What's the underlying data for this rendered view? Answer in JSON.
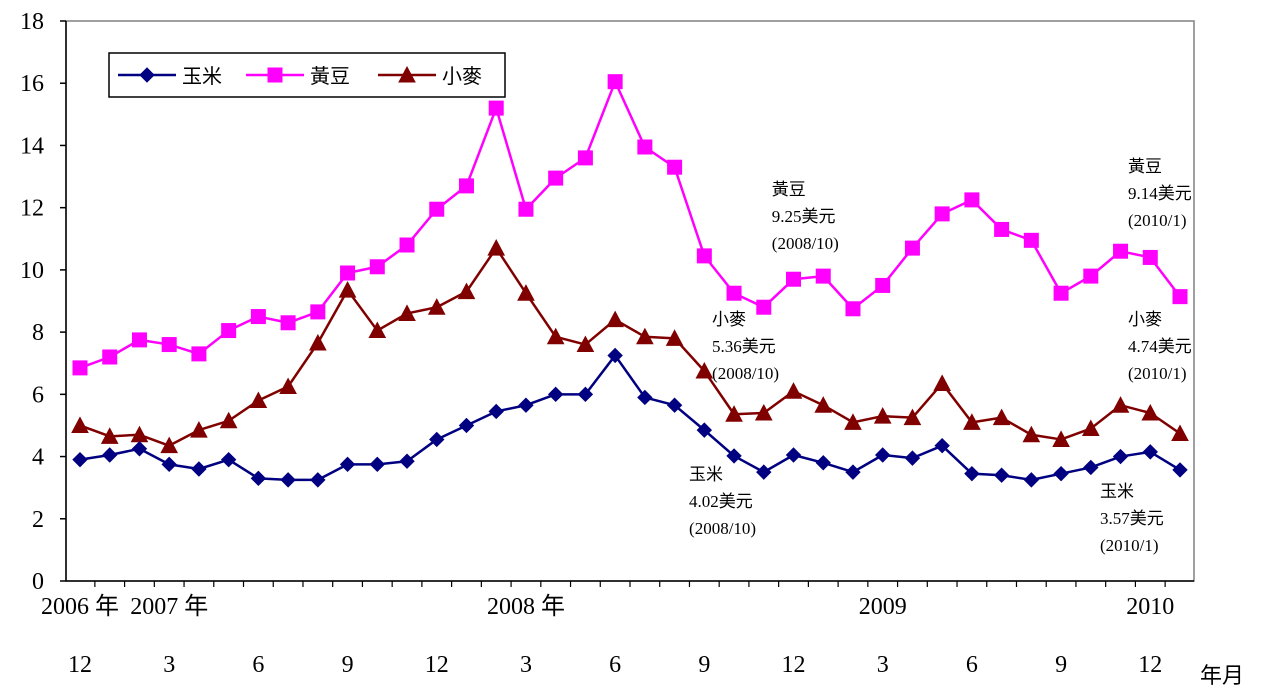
{
  "chart_data": {
    "type": "line",
    "unit_label": "年月",
    "ylim": [
      0,
      18
    ],
    "yticks": [
      0,
      2,
      4,
      6,
      8,
      10,
      12,
      14,
      16,
      18
    ],
    "x": [
      "2006/12",
      "2007/1",
      "2007/2",
      "2007/3",
      "2007/4",
      "2007/5",
      "2007/6",
      "2007/7",
      "2007/8",
      "2007/9",
      "2007/10",
      "2007/11",
      "2007/12",
      "2008/1",
      "2008/2",
      "2008/3",
      "2008/4",
      "2008/5",
      "2008/6",
      "2008/7",
      "2008/8",
      "2008/9",
      "2008/10",
      "2008/11",
      "2008/12",
      "2009/1",
      "2009/2",
      "2009/3",
      "2009/4",
      "2009/5",
      "2009/6",
      "2009/7",
      "2009/8",
      "2009/9",
      "2009/10",
      "2009/11",
      "2009/12",
      "2010/1"
    ],
    "x_tick_labels": [
      {
        "i": 0,
        "month": "12",
        "year": "2006 年"
      },
      {
        "i": 3,
        "month": "3",
        "year": "2007 年"
      },
      {
        "i": 6,
        "month": "6",
        "year": ""
      },
      {
        "i": 9,
        "month": "9",
        "year": ""
      },
      {
        "i": 12,
        "month": "12",
        "year": ""
      },
      {
        "i": 15,
        "month": "3",
        "year": "2008 年"
      },
      {
        "i": 18,
        "month": "6",
        "year": ""
      },
      {
        "i": 21,
        "month": "9",
        "year": ""
      },
      {
        "i": 24,
        "month": "12",
        "year": ""
      },
      {
        "i": 27,
        "month": "3",
        "year": "2009"
      },
      {
        "i": 30,
        "month": "6",
        "year": ""
      },
      {
        "i": 33,
        "month": "9",
        "year": ""
      },
      {
        "i": 36,
        "month": "12",
        "year": "2010"
      }
    ],
    "grid": false,
    "legend": "top-left",
    "series": [
      {
        "name": "玉米",
        "color": "#000080",
        "marker": "diamond",
        "values": [
          3.9,
          4.05,
          4.25,
          3.75,
          3.6,
          3.9,
          3.3,
          3.25,
          3.25,
          3.75,
          3.75,
          3.85,
          4.55,
          5.0,
          5.45,
          5.65,
          6.0,
          6.0,
          7.25,
          5.9,
          5.65,
          4.85,
          4.02,
          3.5,
          4.05,
          3.8,
          3.5,
          4.05,
          3.95,
          4.35,
          3.45,
          3.4,
          3.25,
          3.45,
          3.65,
          4.0,
          4.15,
          3.57
        ]
      },
      {
        "name": "黃豆",
        "color": "#ff00ff",
        "marker": "square",
        "values": [
          6.85,
          7.2,
          7.75,
          7.6,
          7.3,
          8.05,
          8.5,
          8.3,
          8.65,
          9.9,
          10.1,
          10.8,
          11.95,
          12.7,
          15.2,
          11.95,
          12.95,
          13.6,
          16.05,
          13.95,
          13.3,
          10.45,
          9.25,
          8.8,
          9.7,
          9.8,
          8.75,
          9.5,
          10.7,
          11.8,
          12.25,
          11.3,
          10.95,
          9.25,
          9.8,
          10.6,
          10.4,
          9.14
        ]
      },
      {
        "name": "小麥",
        "color": "#800000",
        "marker": "triangle",
        "values": [
          5.0,
          4.65,
          4.7,
          4.35,
          4.85,
          5.15,
          5.8,
          6.25,
          7.65,
          9.35,
          8.05,
          8.6,
          8.8,
          9.3,
          10.7,
          9.25,
          7.85,
          7.6,
          8.4,
          7.85,
          7.8,
          6.75,
          5.36,
          5.4,
          6.1,
          5.65,
          5.1,
          5.3,
          5.25,
          6.35,
          5.1,
          5.25,
          4.7,
          4.55,
          4.9,
          5.65,
          5.4,
          4.74
        ]
      }
    ],
    "annotations": [
      {
        "x": "2008/11",
        "lines": [
          "黃豆",
          "9.25美元",
          "(2008/10)"
        ]
      },
      {
        "x": "2010/1",
        "lines": [
          "黃豆",
          "9.14美元",
          "(2010/1)"
        ]
      },
      {
        "x": "2008/10",
        "lines": [
          "小麥",
          "5.36美元",
          "(2008/10)"
        ]
      },
      {
        "x": "2010/1",
        "lines": [
          "小麥",
          "4.74美元",
          "(2010/1)"
        ]
      },
      {
        "x": "2008/10",
        "lines": [
          "玉米",
          "4.02美元",
          "(2008/10)"
        ]
      },
      {
        "x": "2010/1",
        "lines": [
          "玉米",
          "3.57美元",
          "(2010/1)"
        ]
      }
    ]
  }
}
